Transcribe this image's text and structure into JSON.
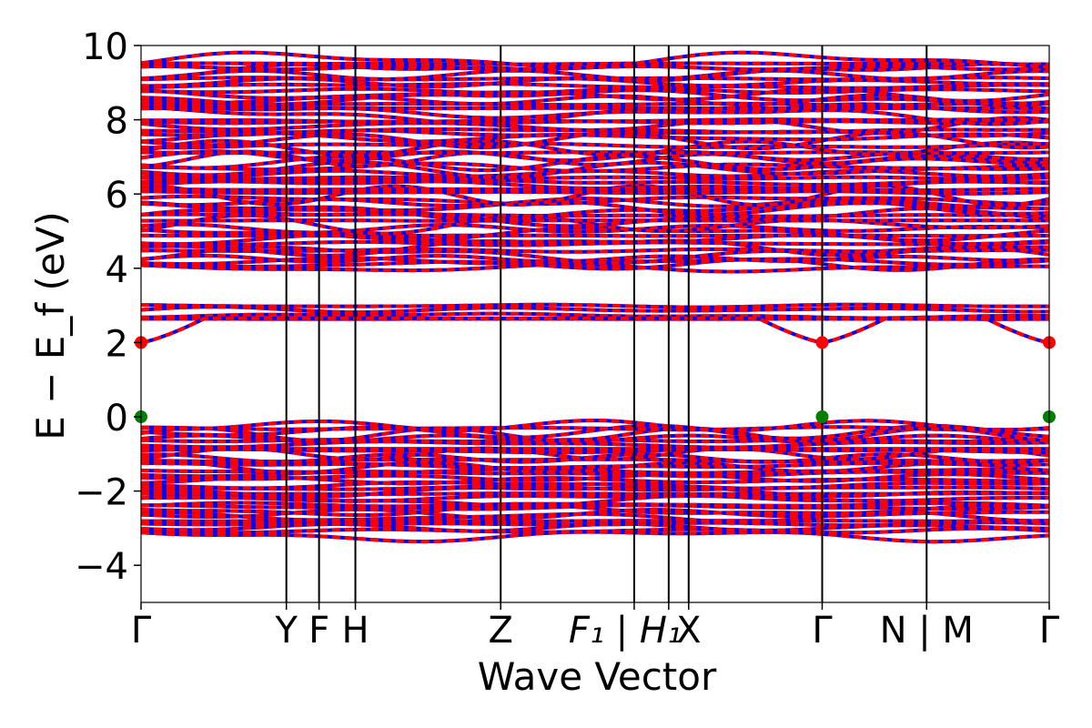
{
  "chart_data": {
    "type": "line",
    "title": "",
    "xlabel": "Wave Vector",
    "ylabel": "E − E_f (eV)",
    "ylim": [
      -5,
      10
    ],
    "yticks": [
      -4,
      -2,
      0,
      2,
      4,
      6,
      8,
      10
    ],
    "ytick_labels": [
      "−4",
      "−2",
      "0",
      "2",
      "4",
      "6",
      "8",
      "10"
    ],
    "x_range": [
      0,
      1
    ],
    "kpath": [
      {
        "label": "Γ",
        "x": 0.0,
        "italic": false
      },
      {
        "label": "Y",
        "x": 0.16,
        "italic": false
      },
      {
        "label": "F",
        "x": 0.196,
        "italic": false
      },
      {
        "label": "H",
        "x": 0.236,
        "italic": false
      },
      {
        "label": "Z",
        "x": 0.396,
        "italic": false
      },
      {
        "label": "F₁ | H₁",
        "x": 0.543,
        "italic": true
      },
      {
        "label": "",
        "x": 0.581,
        "italic": false
      },
      {
        "label": "X",
        "x": 0.603,
        "italic": false
      },
      {
        "label": "Γ",
        "x": 0.75,
        "italic": false
      },
      {
        "label": "N | M",
        "x": 0.865,
        "italic": false
      },
      {
        "label": "Γ",
        "x": 1.0,
        "italic": false
      }
    ],
    "series": [
      {
        "color": "#0000ff",
        "style": "solid"
      },
      {
        "color": "#ff0000",
        "style": "dashed"
      }
    ],
    "band_groups": {
      "valence": {
        "range": [
          -3.25,
          0.0
        ]
      },
      "lower_conduction": {
        "range": [
          2.0,
          3.05
        ]
      },
      "upper_conduction": {
        "range": [
          3.95,
          9.9
        ]
      }
    },
    "markers": [
      {
        "x": 0.0,
        "y": 0.0,
        "color": "#008000"
      },
      {
        "x": 0.75,
        "y": 0.0,
        "color": "#008000"
      },
      {
        "x": 1.0,
        "y": 0.0,
        "color": "#008000"
      },
      {
        "x": 0.0,
        "y": 2.0,
        "color": "#ff0000"
      },
      {
        "x": 0.75,
        "y": 2.0,
        "color": "#ff0000"
      },
      {
        "x": 1.0,
        "y": 2.0,
        "color": "#ff0000"
      }
    ]
  }
}
